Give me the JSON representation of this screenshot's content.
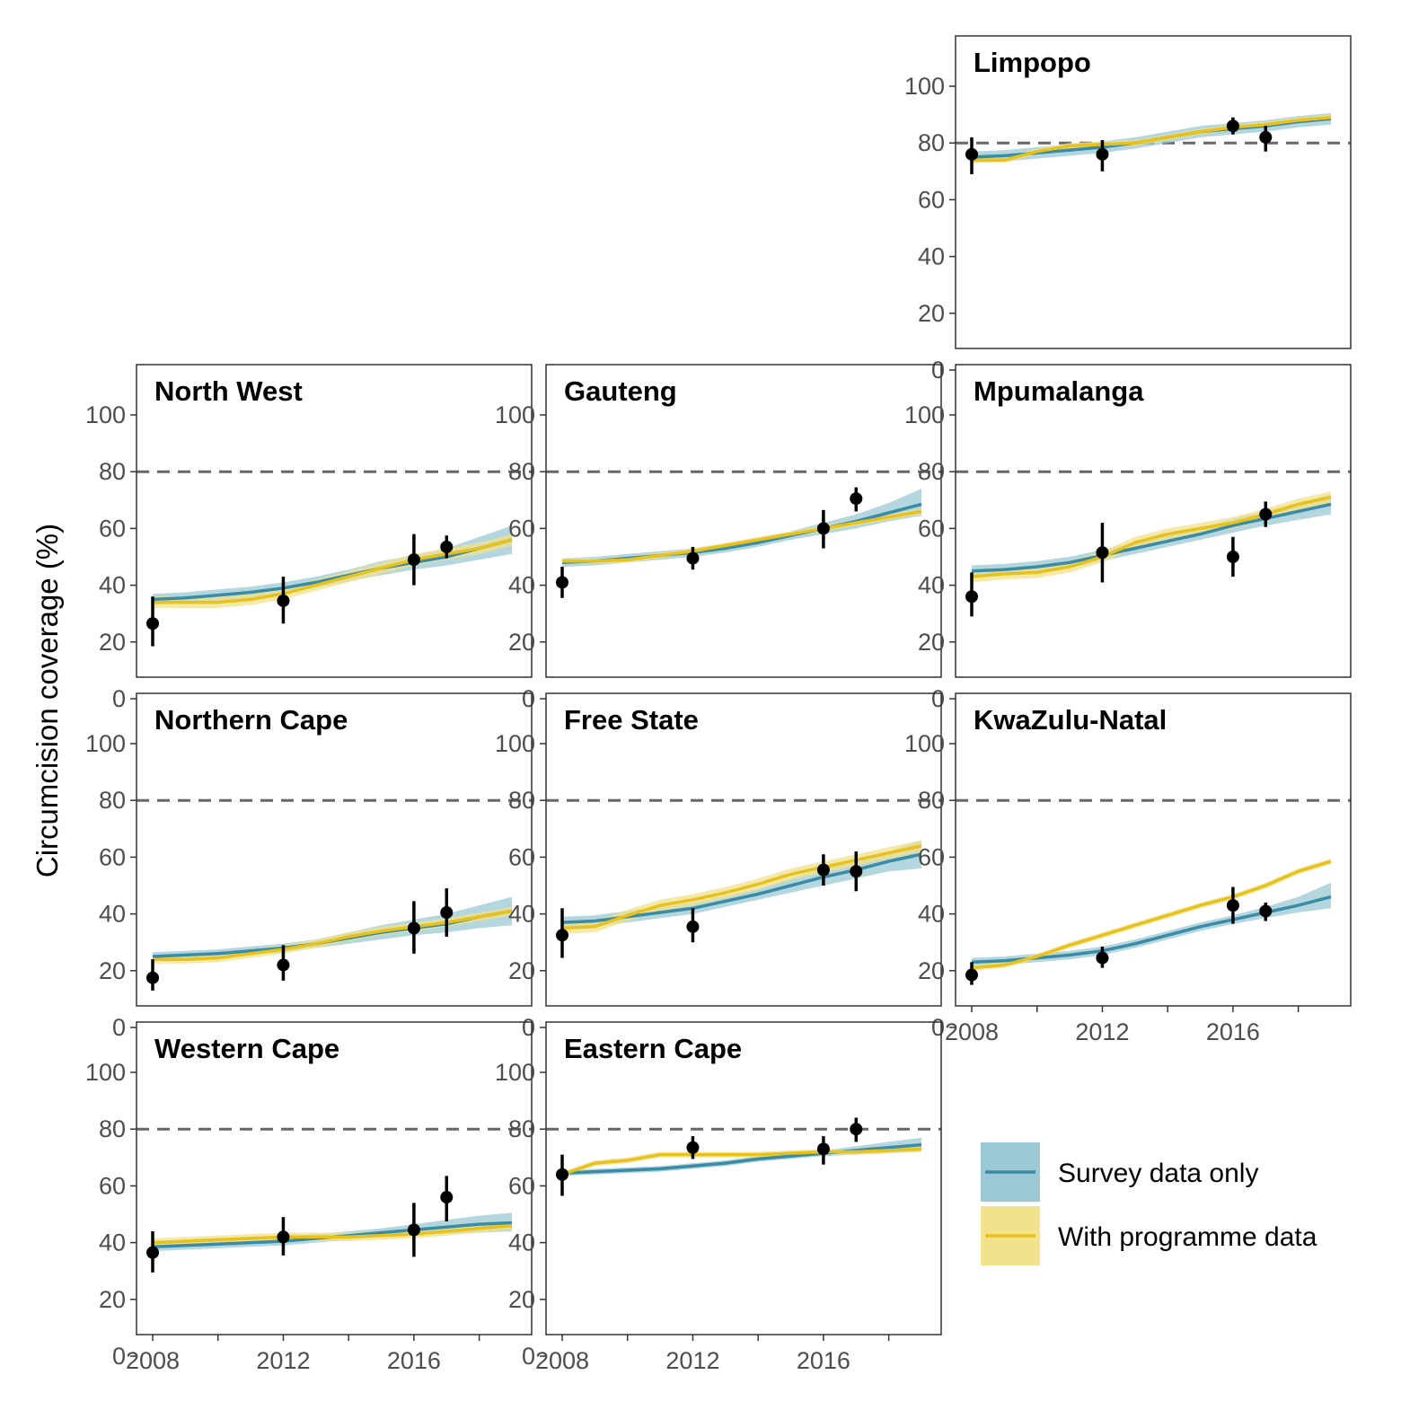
{
  "chart_data": {
    "type": "line",
    "ylabel": "Circumcision coverage (%)",
    "ylim": [
      0,
      100
    ],
    "xlim": [
      2008,
      2019
    ],
    "yticks": [
      0,
      20,
      40,
      60,
      80,
      100
    ],
    "xticks": [
      2008,
      2012,
      2016
    ],
    "minor_xticks": [
      2010,
      2014,
      2018
    ],
    "reference_line": 80,
    "grid": false,
    "legend_position": "bottom-right",
    "colors": {
      "survey": "#3a8ba5",
      "survey_band": "#9ac8d4",
      "programme": "#e8c21c",
      "programme_band": "#f2e28c",
      "points": "#000000",
      "reference": "#666666"
    },
    "legend": [
      {
        "key": "survey",
        "label": "Survey data only"
      },
      {
        "key": "programme",
        "label": "With programme data"
      }
    ],
    "panels": [
      {
        "title": "Limpopo",
        "row": 0,
        "col": 2,
        "show_x_axis": false,
        "x": [
          2008,
          2009,
          2010,
          2011,
          2012,
          2013,
          2014,
          2015,
          2016,
          2017,
          2018,
          2019
        ],
        "survey": [
          75,
          75.5,
          76.5,
          77.5,
          78.5,
          80,
          82,
          84,
          85,
          86,
          87.5,
          88.5
        ],
        "survey_lo": [
          73,
          73.5,
          74.5,
          75.5,
          76.5,
          78,
          80,
          82,
          83,
          84,
          85.5,
          86.5
        ],
        "survey_hi": [
          77,
          77.5,
          78.5,
          79.5,
          80.5,
          82,
          84,
          86,
          87,
          88,
          89.5,
          90.5
        ],
        "programme": [
          74,
          74,
          77,
          79,
          79.5,
          80,
          82,
          84,
          85.5,
          86.5,
          88,
          89
        ],
        "programme_lo": [
          73,
          73,
          76,
          78,
          78.5,
          79,
          81,
          83,
          84.5,
          85.5,
          87,
          88
        ],
        "programme_hi": [
          75,
          75,
          78,
          80,
          80.5,
          81,
          83,
          85,
          86.5,
          87.5,
          89,
          90
        ],
        "observed": [
          {
            "x": 2008,
            "y": 76,
            "lo": 69,
            "hi": 82
          },
          {
            "x": 2012,
            "y": 76,
            "lo": 70,
            "hi": 81
          },
          {
            "x": 2016,
            "y": 86,
            "lo": 83,
            "hi": 89
          },
          {
            "x": 2017,
            "y": 82,
            "lo": 77,
            "hi": 86
          }
        ]
      },
      {
        "title": "North West",
        "row": 1,
        "col": 0,
        "show_x_axis": false,
        "x": [
          2008,
          2009,
          2010,
          2011,
          2012,
          2013,
          2014,
          2015,
          2016,
          2017,
          2018,
          2019
        ],
        "survey": [
          35,
          35.5,
          36.5,
          37.5,
          39,
          41,
          43.5,
          46,
          48,
          50,
          53,
          56
        ],
        "survey_lo": [
          33,
          33.5,
          34.5,
          35.5,
          37,
          39,
          41.5,
          43.5,
          45.5,
          47,
          49,
          51
        ],
        "survey_hi": [
          37,
          37.5,
          38.5,
          39.5,
          41,
          43,
          45.5,
          48.5,
          50.5,
          53,
          57,
          61
        ],
        "programme": [
          34,
          34,
          34,
          35,
          37,
          40,
          43,
          46,
          49,
          51,
          53,
          56
        ],
        "programme_lo": [
          32,
          32,
          32,
          33,
          35,
          38,
          41,
          44,
          47,
          49,
          51,
          54
        ],
        "programme_hi": [
          36,
          36,
          36,
          37,
          39,
          42,
          45,
          48,
          51,
          53,
          55,
          58
        ],
        "observed": [
          {
            "x": 2008,
            "y": 26.5,
            "lo": 18.5,
            "hi": 36
          },
          {
            "x": 2012,
            "y": 34.5,
            "lo": 26.5,
            "hi": 43
          },
          {
            "x": 2016,
            "y": 49,
            "lo": 40,
            "hi": 58
          },
          {
            "x": 2017,
            "y": 53.5,
            "lo": 49.5,
            "hi": 57.5
          }
        ]
      },
      {
        "title": "Gauteng",
        "row": 1,
        "col": 1,
        "show_x_axis": false,
        "x": [
          2008,
          2009,
          2010,
          2011,
          2012,
          2013,
          2014,
          2015,
          2016,
          2017,
          2018,
          2019
        ],
        "survey": [
          48,
          48.5,
          49.5,
          50.5,
          51.5,
          53,
          55,
          57.5,
          60,
          62.5,
          65.5,
          68.5
        ],
        "survey_lo": [
          46.5,
          47,
          48,
          49,
          50,
          51.5,
          53.5,
          56,
          58,
          60,
          62.5,
          64.5
        ],
        "survey_hi": [
          49.5,
          50,
          51,
          52,
          53,
          54.5,
          56.5,
          59,
          62,
          65,
          69,
          74
        ],
        "programme": [
          48.5,
          48.5,
          49,
          50.5,
          52,
          54,
          56,
          58,
          60,
          62,
          64,
          66
        ],
        "programme_lo": [
          47.5,
          47.5,
          48,
          49.5,
          51,
          53,
          55,
          57,
          59,
          61,
          63,
          65
        ],
        "programme_hi": [
          49.5,
          49.5,
          50,
          51.5,
          53,
          55,
          57,
          59,
          61,
          63,
          65,
          67
        ],
        "observed": [
          {
            "x": 2008,
            "y": 41,
            "lo": 35.5,
            "hi": 46.5
          },
          {
            "x": 2012,
            "y": 49.5,
            "lo": 45.5,
            "hi": 53.5
          },
          {
            "x": 2016,
            "y": 60,
            "lo": 53,
            "hi": 66.5
          },
          {
            "x": 2017,
            "y": 70.5,
            "lo": 66,
            "hi": 74.5
          }
        ]
      },
      {
        "title": "Mpumalanga",
        "row": 1,
        "col": 2,
        "show_x_axis": false,
        "x": [
          2008,
          2009,
          2010,
          2011,
          2012,
          2013,
          2014,
          2015,
          2016,
          2017,
          2018,
          2019
        ],
        "survey": [
          45,
          45.5,
          46.5,
          48,
          50.5,
          53,
          55.5,
          58,
          61,
          63.5,
          66,
          68.5
        ],
        "survey_lo": [
          43,
          43.5,
          44.5,
          46,
          48.5,
          51,
          53.5,
          56,
          58.5,
          61,
          63,
          65
        ],
        "survey_hi": [
          47,
          47.5,
          48.5,
          50,
          52.5,
          55,
          57.5,
          60,
          63.5,
          66,
          69,
          72
        ],
        "programme": [
          43,
          44,
          44.5,
          46.5,
          50,
          55,
          58,
          60,
          62,
          65,
          68.5,
          71
        ],
        "programme_lo": [
          41,
          42,
          42.5,
          44.5,
          48,
          53,
          56,
          58,
          60,
          63,
          66.5,
          69
        ],
        "programme_hi": [
          45,
          46,
          46.5,
          48.5,
          52,
          57,
          60,
          62,
          64,
          67,
          70.5,
          73
        ],
        "observed": [
          {
            "x": 2008,
            "y": 36,
            "lo": 29,
            "hi": 44.5
          },
          {
            "x": 2012,
            "y": 51.5,
            "lo": 41,
            "hi": 62
          },
          {
            "x": 2016,
            "y": 50,
            "lo": 43,
            "hi": 57
          },
          {
            "x": 2017,
            "y": 65,
            "lo": 60.5,
            "hi": 69.5
          }
        ]
      },
      {
        "title": "Northern Cape",
        "row": 2,
        "col": 0,
        "show_x_axis": false,
        "x": [
          2008,
          2009,
          2010,
          2011,
          2012,
          2013,
          2014,
          2015,
          2016,
          2017,
          2018,
          2019
        ],
        "survey": [
          25,
          25.5,
          26,
          27,
          28,
          29.5,
          31.5,
          33.5,
          35,
          36.5,
          39,
          41
        ],
        "survey_lo": [
          23.5,
          24,
          24.5,
          25.5,
          26.5,
          28,
          29.5,
          31,
          32.5,
          33.5,
          35,
          36
        ],
        "survey_hi": [
          26.5,
          27,
          27.5,
          28.5,
          29.5,
          31,
          33.5,
          36,
          38,
          40,
          43,
          46
        ],
        "programme": [
          24,
          24,
          24.5,
          26,
          27.5,
          29.5,
          32,
          34,
          35.5,
          37,
          39,
          41
        ],
        "programme_lo": [
          22.5,
          22.5,
          23,
          24.5,
          26,
          28,
          30.5,
          32.5,
          34,
          35.5,
          37.5,
          39.5
        ],
        "programme_hi": [
          25.5,
          25.5,
          26,
          27.5,
          29,
          31,
          33.5,
          35.5,
          37,
          38.5,
          40.5,
          42.5
        ],
        "observed": [
          {
            "x": 2008,
            "y": 17.5,
            "lo": 13,
            "hi": 24
          },
          {
            "x": 2012,
            "y": 22,
            "lo": 16.5,
            "hi": 29
          },
          {
            "x": 2016,
            "y": 35,
            "lo": 26,
            "hi": 44.5
          },
          {
            "x": 2017,
            "y": 40.5,
            "lo": 32,
            "hi": 49
          }
        ]
      },
      {
        "title": "Free State",
        "row": 2,
        "col": 1,
        "show_x_axis": false,
        "x": [
          2008,
          2009,
          2010,
          2011,
          2012,
          2013,
          2014,
          2015,
          2016,
          2017,
          2018,
          2019
        ],
        "survey": [
          37,
          37.5,
          39,
          40.5,
          42,
          44.5,
          47,
          50,
          53,
          55.5,
          58.5,
          61
        ],
        "survey_lo": [
          35,
          35.5,
          37,
          38.5,
          40,
          42.5,
          45,
          47.5,
          50,
          52.5,
          55,
          56
        ],
        "survey_hi": [
          39,
          39.5,
          41,
          42.5,
          44,
          46.5,
          49,
          52.5,
          56,
          58.5,
          62,
          66
        ],
        "programme": [
          35,
          35.5,
          39.5,
          43,
          45,
          47.5,
          50.5,
          54,
          56.5,
          59,
          61.5,
          64
        ],
        "programme_lo": [
          33,
          33.5,
          37.5,
          41,
          43,
          45.5,
          48.5,
          52,
          54.5,
          57,
          59.5,
          62
        ],
        "programme_hi": [
          37,
          37.5,
          41.5,
          45,
          47,
          49.5,
          52.5,
          56,
          58.5,
          61,
          63.5,
          66
        ],
        "observed": [
          {
            "x": 2008,
            "y": 32.5,
            "lo": 24.5,
            "hi": 42
          },
          {
            "x": 2012,
            "y": 35.5,
            "lo": 30,
            "hi": 42
          },
          {
            "x": 2016,
            "y": 55.5,
            "lo": 50,
            "hi": 61
          },
          {
            "x": 2017,
            "y": 55,
            "lo": 48,
            "hi": 62
          }
        ]
      },
      {
        "title": "KwaZulu-Natal",
        "row": 2,
        "col": 2,
        "show_x_axis": true,
        "x": [
          2008,
          2009,
          2010,
          2011,
          2012,
          2013,
          2014,
          2015,
          2016,
          2017,
          2018,
          2019
        ],
        "survey": [
          23,
          23.5,
          24.5,
          25.5,
          27,
          29.5,
          32.5,
          35.5,
          38,
          40.5,
          43,
          46
        ],
        "survey_lo": [
          21.5,
          22,
          23,
          24,
          25.5,
          28,
          31,
          34,
          36.5,
          38.5,
          40.5,
          42
        ],
        "survey_hi": [
          24.5,
          25,
          26,
          27,
          28.5,
          31,
          34,
          37,
          39.5,
          42.5,
          46,
          51
        ],
        "programme": [
          21,
          22,
          25,
          29,
          32.5,
          36,
          39.5,
          43,
          46,
          50,
          55,
          58.5
        ],
        "programme_lo": [
          20,
          21,
          24,
          28,
          31.5,
          35,
          38.5,
          42,
          45,
          49,
          54,
          57.5
        ],
        "programme_hi": [
          22,
          23,
          26,
          30,
          33.5,
          37,
          40.5,
          44,
          47,
          51,
          56,
          59.5
        ],
        "observed": [
          {
            "x": 2008,
            "y": 18.5,
            "lo": 15,
            "hi": 23
          },
          {
            "x": 2012,
            "y": 24.5,
            "lo": 21,
            "hi": 28.5
          },
          {
            "x": 2016,
            "y": 43,
            "lo": 36.5,
            "hi": 49.5
          },
          {
            "x": 2017,
            "y": 41,
            "lo": 37.5,
            "hi": 44
          }
        ]
      },
      {
        "title": "Western Cape",
        "row": 3,
        "col": 0,
        "show_x_axis": true,
        "x": [
          2008,
          2009,
          2010,
          2011,
          2012,
          2013,
          2014,
          2015,
          2016,
          2017,
          2018,
          2019
        ],
        "survey": [
          38.5,
          39,
          39.5,
          40,
          40.5,
          41.5,
          42.5,
          43.5,
          44.5,
          45.5,
          46.5,
          47
        ],
        "survey_lo": [
          37,
          37.5,
          38,
          38.5,
          39,
          40,
          41,
          42,
          42.5,
          43,
          43.5,
          44
        ],
        "survey_hi": [
          40,
          40.5,
          41,
          41.5,
          42,
          43,
          44,
          45,
          46.5,
          48,
          49.5,
          50.5
        ],
        "programme": [
          40,
          40.5,
          41,
          41.5,
          42,
          42,
          42,
          42.5,
          43,
          44,
          45,
          46
        ],
        "programme_lo": [
          38.5,
          39,
          39.5,
          40,
          40.5,
          40.5,
          40.5,
          41,
          41.5,
          42.5,
          43.5,
          44.5
        ],
        "programme_hi": [
          41.5,
          42,
          42.5,
          43,
          43.5,
          43.5,
          43.5,
          44,
          44.5,
          45.5,
          46.5,
          47.5
        ],
        "observed": [
          {
            "x": 2008,
            "y": 36.5,
            "lo": 29.5,
            "hi": 44
          },
          {
            "x": 2012,
            "y": 42,
            "lo": 35.5,
            "hi": 49
          },
          {
            "x": 2016,
            "y": 44.5,
            "lo": 35,
            "hi": 54
          },
          {
            "x": 2017,
            "y": 56,
            "lo": 47.5,
            "hi": 63.5
          }
        ]
      },
      {
        "title": "Eastern Cape",
        "row": 3,
        "col": 1,
        "show_x_axis": true,
        "x": [
          2008,
          2009,
          2010,
          2011,
          2012,
          2013,
          2014,
          2015,
          2016,
          2017,
          2018,
          2019
        ],
        "survey": [
          64.5,
          65,
          65.5,
          66,
          67,
          68,
          69.5,
          70.5,
          71.5,
          72.5,
          73.5,
          74.5
        ],
        "survey_lo": [
          63.5,
          64,
          64.5,
          65,
          66,
          67,
          68.5,
          69.5,
          70.5,
          71,
          71.5,
          72
        ],
        "survey_hi": [
          65.5,
          66,
          66.5,
          67,
          68,
          69,
          70.5,
          71.5,
          72.5,
          74,
          75.5,
          77
        ],
        "programme": [
          64,
          68,
          69,
          71,
          71,
          71,
          71,
          71.5,
          72,
          72,
          72.5,
          73
        ],
        "programme_lo": [
          63,
          67,
          68,
          70,
          70,
          70,
          70,
          70.5,
          71,
          71,
          71.5,
          72
        ],
        "programme_hi": [
          65,
          69,
          70,
          72,
          72,
          72,
          72,
          72.5,
          73,
          73,
          73.5,
          74
        ],
        "observed": [
          {
            "x": 2008,
            "y": 64,
            "lo": 56.5,
            "hi": 71
          },
          {
            "x": 2012,
            "y": 73.5,
            "lo": 69.5,
            "hi": 77.5
          },
          {
            "x": 2016,
            "y": 73,
            "lo": 67.5,
            "hi": 77.5
          },
          {
            "x": 2017,
            "y": 80,
            "lo": 75.5,
            "hi": 84
          }
        ]
      }
    ]
  }
}
